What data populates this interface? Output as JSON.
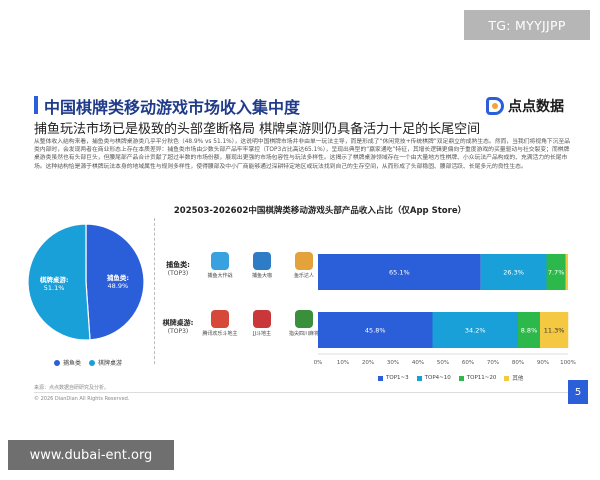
{
  "badges": {
    "top_right": "TG: MYYJJPP",
    "bottom_left": "www.dubai-ent.org"
  },
  "header": {
    "title": "中国棋牌类移动游戏市场收入集中度",
    "subtitle": "捕鱼玩法市场已是极致的头部垄断格局 棋牌桌游则仍具备活力十足的长尾空间",
    "logo_text": "点点数据"
  },
  "paragraph": "从整体收入结构来看，捕鱼类与棋牌桌游类几乎平分秋色（48.9% vs 51.1%），这说明中国棋牌市场并非由单一玩法主导，而是形成了“休闲竞技+传统棋牌”双足鼎立的成熟生态。然而，当我们将视角下沉至品类内部时，会发现两者在商业形态上存在本质差异：捕鱼类市场由少数头部产品牢牢掌控（TOP3占比高达65.1%），呈现出典型的“赢家通吃”特征，其增长逻辑更偏向于重度游戏的买量驱动与社交裂变；而棋牌桌游类虽然也有头部巨头，但腰尾部产品合计贡献了超过半数的市场份额，展现出更强的市场包容性与玩法多样性。这揭示了棋牌桌游领域存在一个由大量地方性棋牌、小众玩法产品构成的、充满活力的长尾市场。这种结构恰是源于棋牌玩法本身的地域属性与规则多样性，使得腰部及中小厂商能够通过深耕特定地区或玩法找到自己的生存空间，从而形成了头部稳固、腰部活跃、长尾多元的良性生态。",
  "chart_title": "202503-202602中国棋牌类移动游戏头部产品收入占比（仅App Store）",
  "pie": {
    "slices": [
      {
        "name": "捕鱼类",
        "value": 48.9,
        "label": "48.9%",
        "color": "#2b5fd9"
      },
      {
        "name": "棋牌桌游",
        "value": 51.1,
        "label": "51.1%",
        "color": "#1aa0d8"
      }
    ],
    "legend": [
      "捕鱼类",
      "棋牌桌游"
    ]
  },
  "categories": [
    {
      "name": "捕鱼类:",
      "sub": "(TOP3)",
      "games": [
        {
          "name": "捕鱼大作战",
          "icon": "fish-game-icon",
          "color": "#3aa1e0"
        },
        {
          "name": "捕鱼大咖",
          "icon": "fish-character-icon",
          "color": "#2e7bc6"
        },
        {
          "name": "鱼乐达人",
          "icon": "fish-master-icon",
          "color": "#e3a23a"
        }
      ]
    },
    {
      "name": "棋牌桌游:",
      "sub": "(TOP3)",
      "games": [
        {
          "name": "腾讯欢乐斗地主",
          "icon": "doudizhu-character-icon",
          "color": "#d6483a"
        },
        {
          "name": "JJ斗地主",
          "icon": "jj-character-icon",
          "color": "#c9373a"
        },
        {
          "name": "指尖四川麻将",
          "icon": "mahjong-tile-icon",
          "color": "#3a8f3a"
        }
      ]
    }
  ],
  "chart_data": {
    "type": "bar",
    "orientation": "horizontal",
    "stacked": true,
    "categories": [
      "捕鱼类",
      "棋牌桌游"
    ],
    "series": [
      {
        "name": "TOP1~3",
        "color": "#2b5fd9",
        "values": [
          65.1,
          45.8
        ]
      },
      {
        "name": "TOP4~10",
        "color": "#1aa0d8",
        "values": [
          26.3,
          34.2
        ]
      },
      {
        "name": "TOP11~20",
        "color": "#2db84c",
        "values": [
          7.7,
          8.8
        ]
      },
      {
        "name": "其他",
        "color": "#f5c842",
        "values": [
          0.9,
          11.3
        ]
      }
    ],
    "value_labels": [
      [
        "65.1%",
        "26.3%",
        "7.7%",
        ""
      ],
      [
        "45.8%",
        "34.2%",
        "8.8%",
        "11.3%"
      ]
    ],
    "title": "202503-202602中国棋牌类移动游戏头部产品收入占比（仅App Store）",
    "xlim": [
      0,
      100
    ],
    "xticks": [
      "0%",
      "10%",
      "20%",
      "30%",
      "40%",
      "50%",
      "60%",
      "70%",
      "80%",
      "90%",
      "100%"
    ],
    "grid": false,
    "legend_position": "bottom"
  },
  "footer": {
    "source": "来源：点点数据自研研究及分析。",
    "copyright": "© 2026 DianDian All Rights Reserved.",
    "page_number": "5"
  }
}
